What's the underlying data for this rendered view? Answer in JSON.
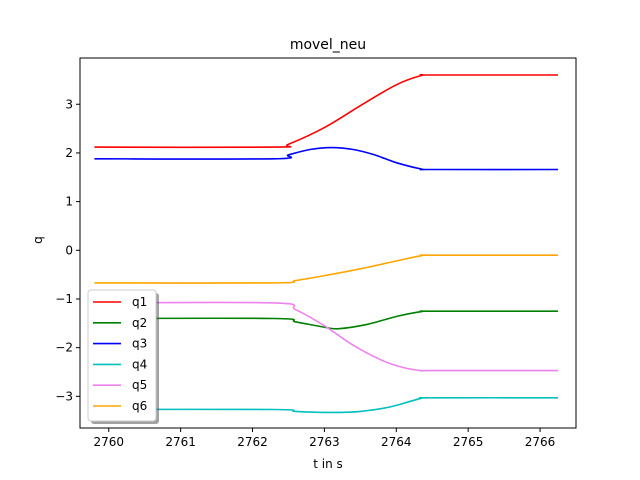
{
  "chart_data": {
    "type": "line",
    "title": "movel_neu",
    "xlabel": "t in s",
    "ylabel": "q",
    "xlim": [
      2759.6,
      2766.5
    ],
    "ylim": [
      -3.65,
      3.95
    ],
    "xticks": [
      2760,
      2761,
      2762,
      2763,
      2764,
      2765,
      2766
    ],
    "yticks": [
      -3,
      -2,
      -1,
      0,
      1,
      2,
      3
    ],
    "grid": false,
    "legend": "lower-left",
    "series": [
      {
        "name": "q1",
        "color": "#ff0000",
        "x": [
          2759.8,
          2762.3,
          2762.5,
          2763.0,
          2763.5,
          2764.0,
          2764.35,
          2764.5,
          2766.25
        ],
        "y": [
          2.12,
          2.12,
          2.18,
          2.52,
          2.97,
          3.4,
          3.59,
          3.6,
          3.6
        ]
      },
      {
        "name": "q2",
        "color": "#008000",
        "x": [
          2759.8,
          2762.3,
          2762.6,
          2763.0,
          2763.2,
          2763.6,
          2764.0,
          2764.35,
          2764.5,
          2766.25
        ],
        "y": [
          -1.4,
          -1.4,
          -1.47,
          -1.58,
          -1.61,
          -1.52,
          -1.36,
          -1.26,
          -1.25,
          -1.25
        ]
      },
      {
        "name": "q3",
        "color": "#0000ff",
        "x": [
          2759.8,
          2762.3,
          2762.5,
          2762.8,
          2763.1,
          2763.4,
          2763.7,
          2764.0,
          2764.35,
          2764.5,
          2766.25
        ],
        "y": [
          1.88,
          1.88,
          1.96,
          2.07,
          2.11,
          2.07,
          1.96,
          1.8,
          1.67,
          1.66,
          1.66
        ]
      },
      {
        "name": "q4",
        "color": "#00bfbf",
        "x": [
          2759.8,
          2762.3,
          2762.6,
          2763.1,
          2763.5,
          2763.9,
          2764.2,
          2764.35,
          2764.5,
          2766.25
        ],
        "y": [
          -3.27,
          -3.27,
          -3.31,
          -3.33,
          -3.31,
          -3.22,
          -3.1,
          -3.04,
          -3.03,
          -3.03
        ]
      },
      {
        "name": "q5",
        "color": "#ee82ee",
        "x": [
          2759.8,
          2762.3,
          2762.6,
          2763.0,
          2763.4,
          2763.8,
          2764.1,
          2764.35,
          2764.5,
          2766.25
        ],
        "y": [
          -1.08,
          -1.08,
          -1.22,
          -1.55,
          -1.95,
          -2.26,
          -2.41,
          -2.47,
          -2.47,
          -2.47
        ]
      },
      {
        "name": "q6",
        "color": "#ffa500",
        "x": [
          2759.8,
          2762.3,
          2762.6,
          2763.0,
          2763.5,
          2764.0,
          2764.35,
          2764.5,
          2766.25
        ],
        "y": [
          -0.67,
          -0.67,
          -0.62,
          -0.52,
          -0.38,
          -0.22,
          -0.11,
          -0.1,
          -0.1
        ]
      }
    ]
  }
}
